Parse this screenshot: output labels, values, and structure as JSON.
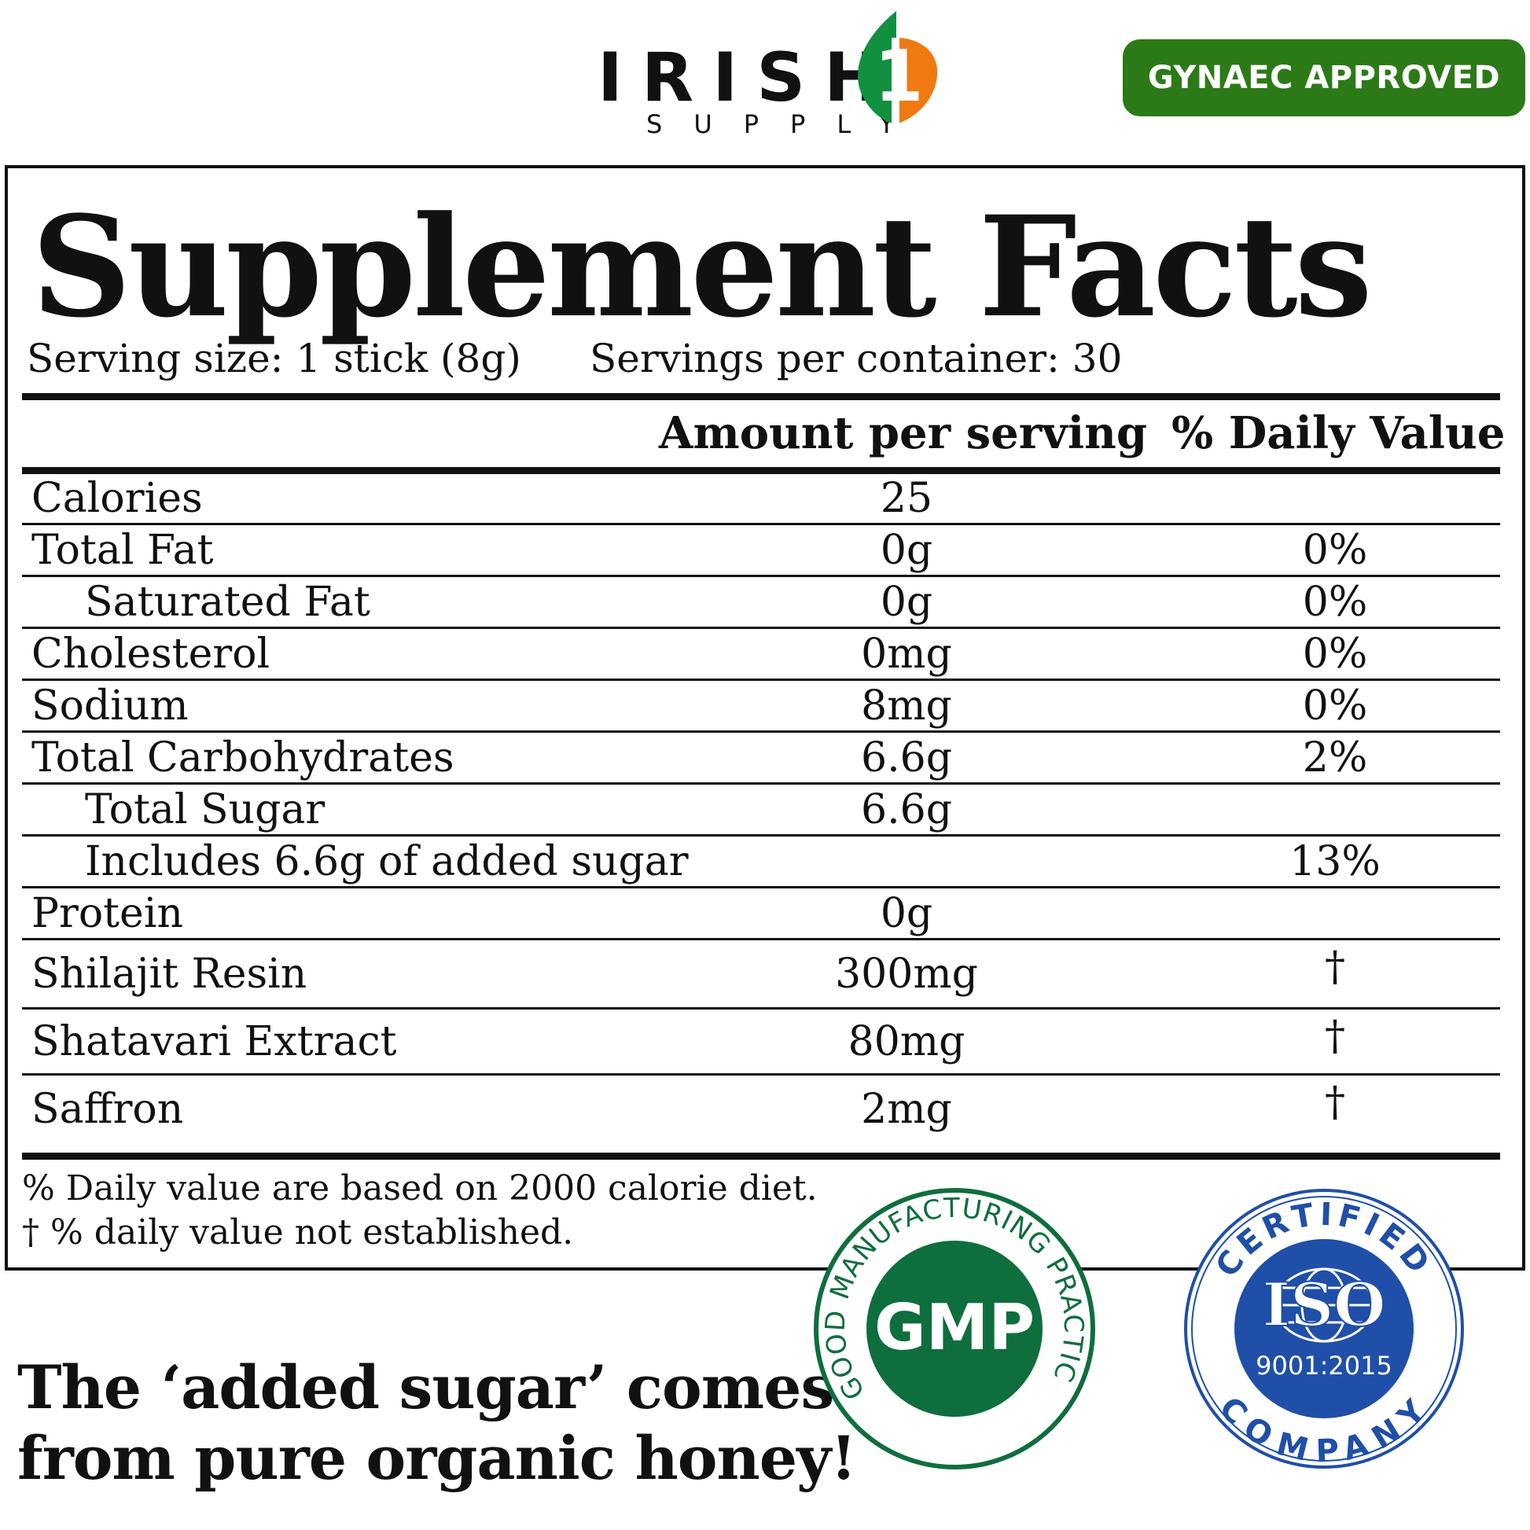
{
  "brand": {
    "name": "IRISH",
    "sub": "SUPPLY",
    "mark_letter": "1"
  },
  "badge": {
    "label": "GYNAEC APPROVED"
  },
  "colors": {
    "badge_green": "#2c7a17",
    "gmp_green": "#0f6e3d",
    "iso_blue": "#1f4fa8",
    "brand_orange": "#f07a12",
    "brand_green": "#11903f"
  },
  "facts": {
    "title": "Supplement Facts",
    "serving_size": "Serving size: 1 stick (8g)",
    "servings_per_container": "Servings per container: 30",
    "col_amount": "Amount per serving",
    "col_daily": "% Daily Value",
    "rows": [
      {
        "name": "Calories",
        "amount": "25",
        "dv": ""
      },
      {
        "name": "Total Fat",
        "amount": "0g",
        "dv": "0%"
      },
      {
        "name": "Saturated Fat",
        "amount": "0g",
        "dv": "0%"
      },
      {
        "name": "Cholesterol",
        "amount": "0mg",
        "dv": "0%"
      },
      {
        "name": "Sodium",
        "amount": "8mg",
        "dv": "0%"
      },
      {
        "name": "Total Carbohydrates",
        "amount": "6.6g",
        "dv": "2%"
      },
      {
        "name": "Total Sugar",
        "amount": "6.6g",
        "dv": ""
      },
      {
        "name": "Includes 6.6g of added sugar",
        "amount": "",
        "dv": "13%"
      },
      {
        "name": "Protein",
        "amount": "0g",
        "dv": ""
      },
      {
        "name": "Shilajit Resin",
        "amount": "300mg",
        "dv": "†"
      },
      {
        "name": "Shatavari Extract",
        "amount": "80mg",
        "dv": "†"
      },
      {
        "name": "Saffron",
        "amount": "2mg",
        "dv": "†"
      }
    ],
    "footnote_1": "% Daily value are based on 2000 calorie diet.",
    "footnote_2": "†  % daily value not established."
  },
  "tagline": {
    "line1": "The ‘added sugar’ comes",
    "line2": "from pure organic honey!"
  },
  "gmp_seal": {
    "center": "GMP",
    "ring": "GOOD MANUFACTURING PRACTICE"
  },
  "iso_seal": {
    "center": "ISO",
    "standard": "9001:2015",
    "top": "CERTIFIED",
    "bottom": "COMPANY"
  }
}
